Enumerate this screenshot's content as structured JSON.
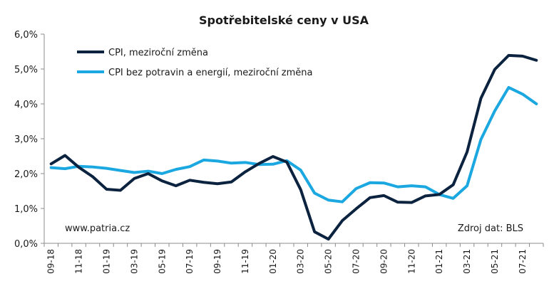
{
  "chart_data": {
    "type": "line",
    "title": "Spotřebitelské ceny v USA",
    "xlabel": "",
    "ylabel": "",
    "ylim": [
      0,
      6
    ],
    "y_ticks": [
      "0,0%",
      "1,0%",
      "2,0%",
      "3,0%",
      "4,0%",
      "5,0%",
      "6,0%"
    ],
    "x_tick_labels": [
      "09-18",
      "11-18",
      "01-19",
      "03-19",
      "05-19",
      "07-19",
      "09-19",
      "11-19",
      "01-20",
      "03-20",
      "05-20",
      "07-20",
      "09-20",
      "11-20",
      "01-21",
      "03-21",
      "05-21",
      "07-21"
    ],
    "x": [
      "09-18",
      "10-18",
      "11-18",
      "12-18",
      "01-19",
      "02-19",
      "03-19",
      "04-19",
      "05-19",
      "06-19",
      "07-19",
      "08-19",
      "09-19",
      "10-19",
      "11-19",
      "12-19",
      "01-20",
      "02-20",
      "03-20",
      "04-20",
      "05-20",
      "06-20",
      "07-20",
      "08-20",
      "09-20",
      "10-20",
      "11-20",
      "12-20",
      "01-21",
      "02-21",
      "03-21",
      "04-21",
      "05-21",
      "06-21",
      "07-21",
      "08-21"
    ],
    "series": [
      {
        "name": "CPI, meziroční změna",
        "color": "#0c2340",
        "values": [
          2.28,
          2.52,
          2.18,
          1.91,
          1.55,
          1.52,
          1.86,
          2.0,
          1.79,
          1.65,
          1.81,
          1.75,
          1.71,
          1.76,
          2.05,
          2.29,
          2.49,
          2.33,
          1.54,
          0.33,
          0.12,
          0.65,
          0.99,
          1.31,
          1.37,
          1.18,
          1.17,
          1.36,
          1.4,
          1.68,
          2.62,
          4.16,
          4.99,
          5.39,
          5.37,
          5.25
        ]
      },
      {
        "name": "CPI bez potravin a energií, meziroční změna",
        "color": "#1ba7e0",
        "values": [
          2.17,
          2.14,
          2.21,
          2.19,
          2.15,
          2.09,
          2.03,
          2.07,
          2.0,
          2.12,
          2.2,
          2.39,
          2.36,
          2.3,
          2.32,
          2.26,
          2.27,
          2.37,
          2.1,
          1.44,
          1.24,
          1.19,
          1.57,
          1.74,
          1.73,
          1.62,
          1.65,
          1.62,
          1.4,
          1.29,
          1.65,
          2.98,
          3.8,
          4.47,
          4.28,
          4.0
        ]
      }
    ],
    "legend_position": "top-left",
    "grid": false
  },
  "notes": {
    "source_left": "www.patria.cz",
    "source_right": "Zdroj dat: BLS"
  }
}
